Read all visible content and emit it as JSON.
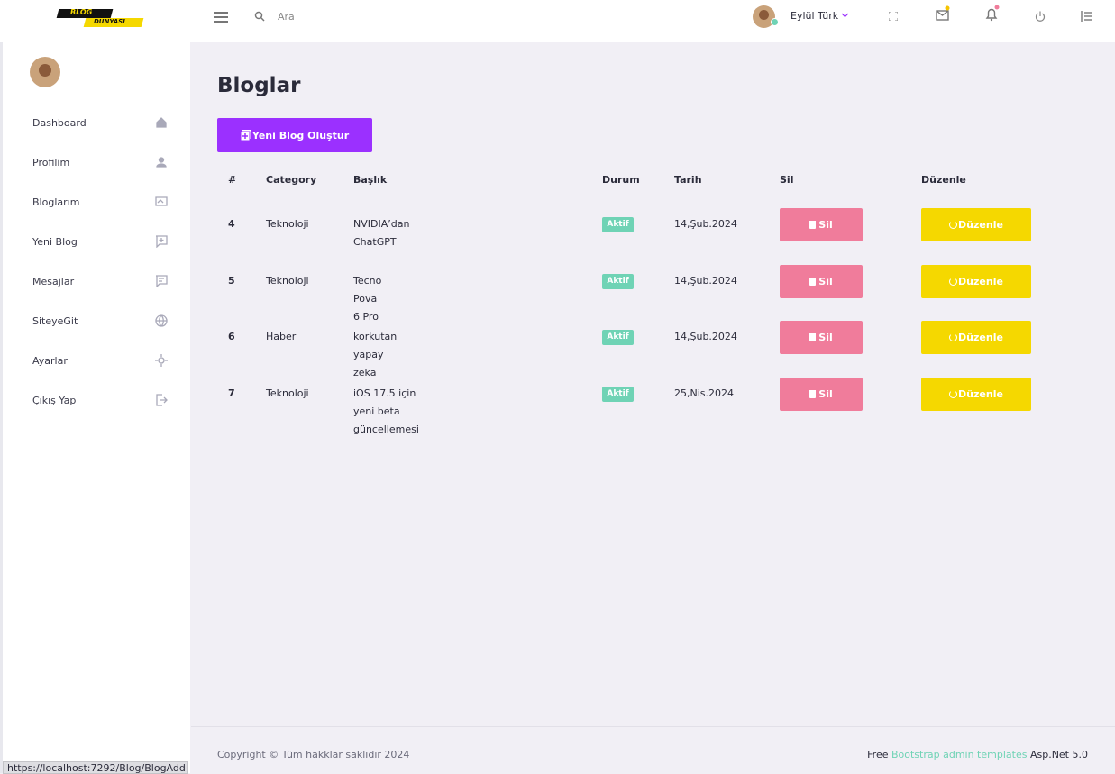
{
  "logo": {
    "line1": "BLOG",
    "line2": "DÜNYASI"
  },
  "topbar": {
    "search_placeholder": "Ara",
    "user_name": "Eylül Türk"
  },
  "sidebar": {
    "items": [
      "Dashboard",
      "Profilim",
      "Bloglarım",
      "Yeni Blog",
      "Mesajlar",
      "SiteyeGit",
      "Ayarlar",
      "Çıkış Yap"
    ]
  },
  "page": {
    "title": "Bloglar",
    "new_button": "Yeni Blog Oluştur"
  },
  "table": {
    "headers": [
      "#",
      "Category",
      "Başlık",
      "Durum",
      "Tarih",
      "Sil",
      "Düzenle"
    ],
    "rows": [
      [
        4,
        "Teknoloji",
        "NVIDIA’dan ChatGPT",
        "Aktif",
        "14,Şub.2024",
        "Sil",
        "Düzenle"
      ],
      [
        5,
        "Teknoloji",
        "Tecno Pova 6 Pro",
        "Aktif",
        "14,Şub.2024",
        "Sil",
        "Düzenle"
      ],
      [
        6,
        "Haber",
        "korkutan yapay zeka",
        "Aktif",
        "14,Şub.2024",
        "Sil",
        "Düzenle"
      ],
      [
        7,
        "Teknoloji",
        "iOS 17.5 için yeni beta güncellemesi",
        "Aktif",
        "25,Nis.2024",
        "Sil",
        "Düzenle"
      ]
    ]
  },
  "footer": {
    "copyright": "Copyright © Tüm hakklar saklıdır 2024",
    "credit_prefix": "Free",
    "credit_link": "Bootstrap admin templates",
    "credit_suffix": "Asp.Net 5.0"
  },
  "status_bar": "https://localhost:7292/Blog/BlogAdd"
}
